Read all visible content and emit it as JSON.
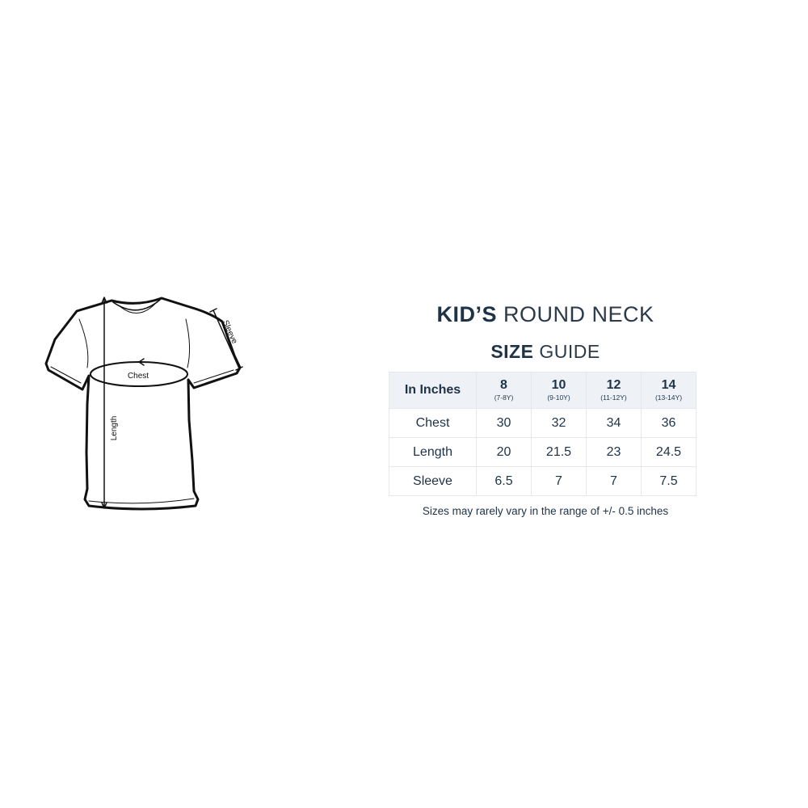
{
  "title": {
    "bold": "KID’S",
    "light": "ROUND NECK"
  },
  "subtitle": {
    "bold": "SIZE",
    "light": "GUIDE"
  },
  "diagram_labels": {
    "chest": "Chest",
    "length": "Length",
    "sleeve": "Sleeve"
  },
  "table": {
    "corner": "In Inches",
    "sizes": [
      {
        "size": "8",
        "age": "(7-8Y)"
      },
      {
        "size": "10",
        "age": "(9-10Y)"
      },
      {
        "size": "12",
        "age": "(11-12Y)"
      },
      {
        "size": "14",
        "age": "(13-14Y)"
      }
    ],
    "rows": [
      {
        "label": "Chest",
        "values": [
          "30",
          "32",
          "34",
          "36"
        ]
      },
      {
        "label": "Length",
        "values": [
          "20",
          "21.5",
          "23",
          "24.5"
        ]
      },
      {
        "label": "Sleeve",
        "values": [
          "6.5",
          "7",
          "7",
          "7.5"
        ]
      }
    ]
  },
  "note": "Sizes may rarely vary in the range of +/- 0.5 inches",
  "colors": {
    "text": "#1f3347",
    "header_bg": "#eef2f6",
    "border": "#e4e8ec"
  }
}
